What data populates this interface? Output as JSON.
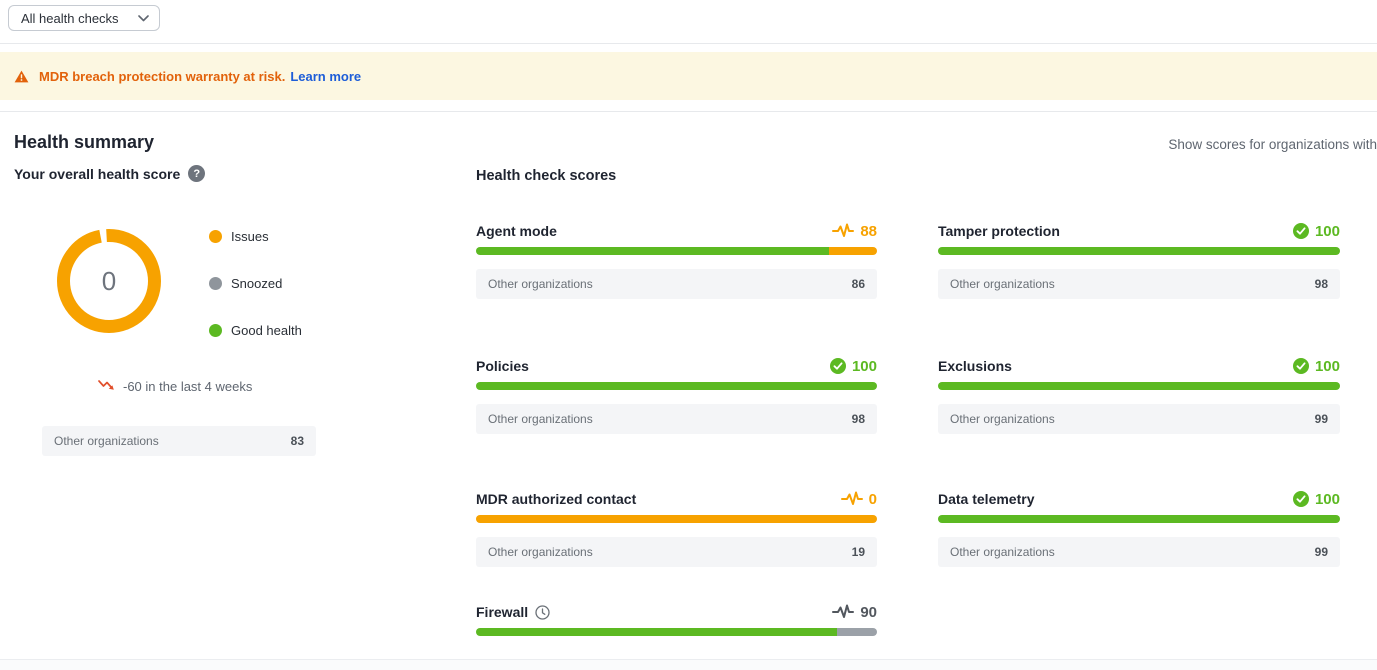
{
  "filter": {
    "label": "All health checks"
  },
  "banner": {
    "text": "MDR breach protection warranty at risk.",
    "link": "Learn more"
  },
  "summary": {
    "title": "Health summary",
    "subtitle": "Your overall health score",
    "show_scores_label": "Show scores for organizations with",
    "trend_text": "-60 in the last 4 weeks",
    "benchmark_label": "Other organizations",
    "benchmark_value": "83"
  },
  "scores_section": {
    "title": "Health check scores",
    "benchmark_label": "Other organizations"
  },
  "chart_data": {
    "type": "pie",
    "title": "Your overall health score",
    "center_value": "0",
    "slices": [
      {
        "label": "Issues",
        "color": "#f7a200",
        "value": 100
      },
      {
        "label": "Snoozed",
        "color": "#8f959c",
        "value": 0
      },
      {
        "label": "Good health",
        "color": "#5cb922",
        "value": 0
      }
    ]
  },
  "checks": [
    {
      "name": "Agent mode",
      "score": 88,
      "status": "issue",
      "benchmark": "86"
    },
    {
      "name": "Tamper protection",
      "score": 100,
      "status": "good",
      "benchmark": "98"
    },
    {
      "name": "Policies",
      "score": 100,
      "status": "good",
      "benchmark": "98"
    },
    {
      "name": "Exclusions",
      "score": 100,
      "status": "good",
      "benchmark": "99"
    },
    {
      "name": "MDR authorized contact",
      "score": 0,
      "status": "issue",
      "benchmark": "19"
    },
    {
      "name": "Data telemetry",
      "score": 100,
      "status": "good",
      "benchmark": "99"
    },
    {
      "name": "Firewall",
      "score": 90,
      "status": "snoozed",
      "benchmark": null,
      "snoozed": true
    }
  ],
  "colors": {
    "green": "#5cb922",
    "orange": "#f7a200",
    "gray": "#9ba1a8",
    "snoozed_text": "#52575e",
    "banner_orange": "#e2620b",
    "link_blue": "#1d5dd8",
    "trend_red": "#e14f2b"
  }
}
